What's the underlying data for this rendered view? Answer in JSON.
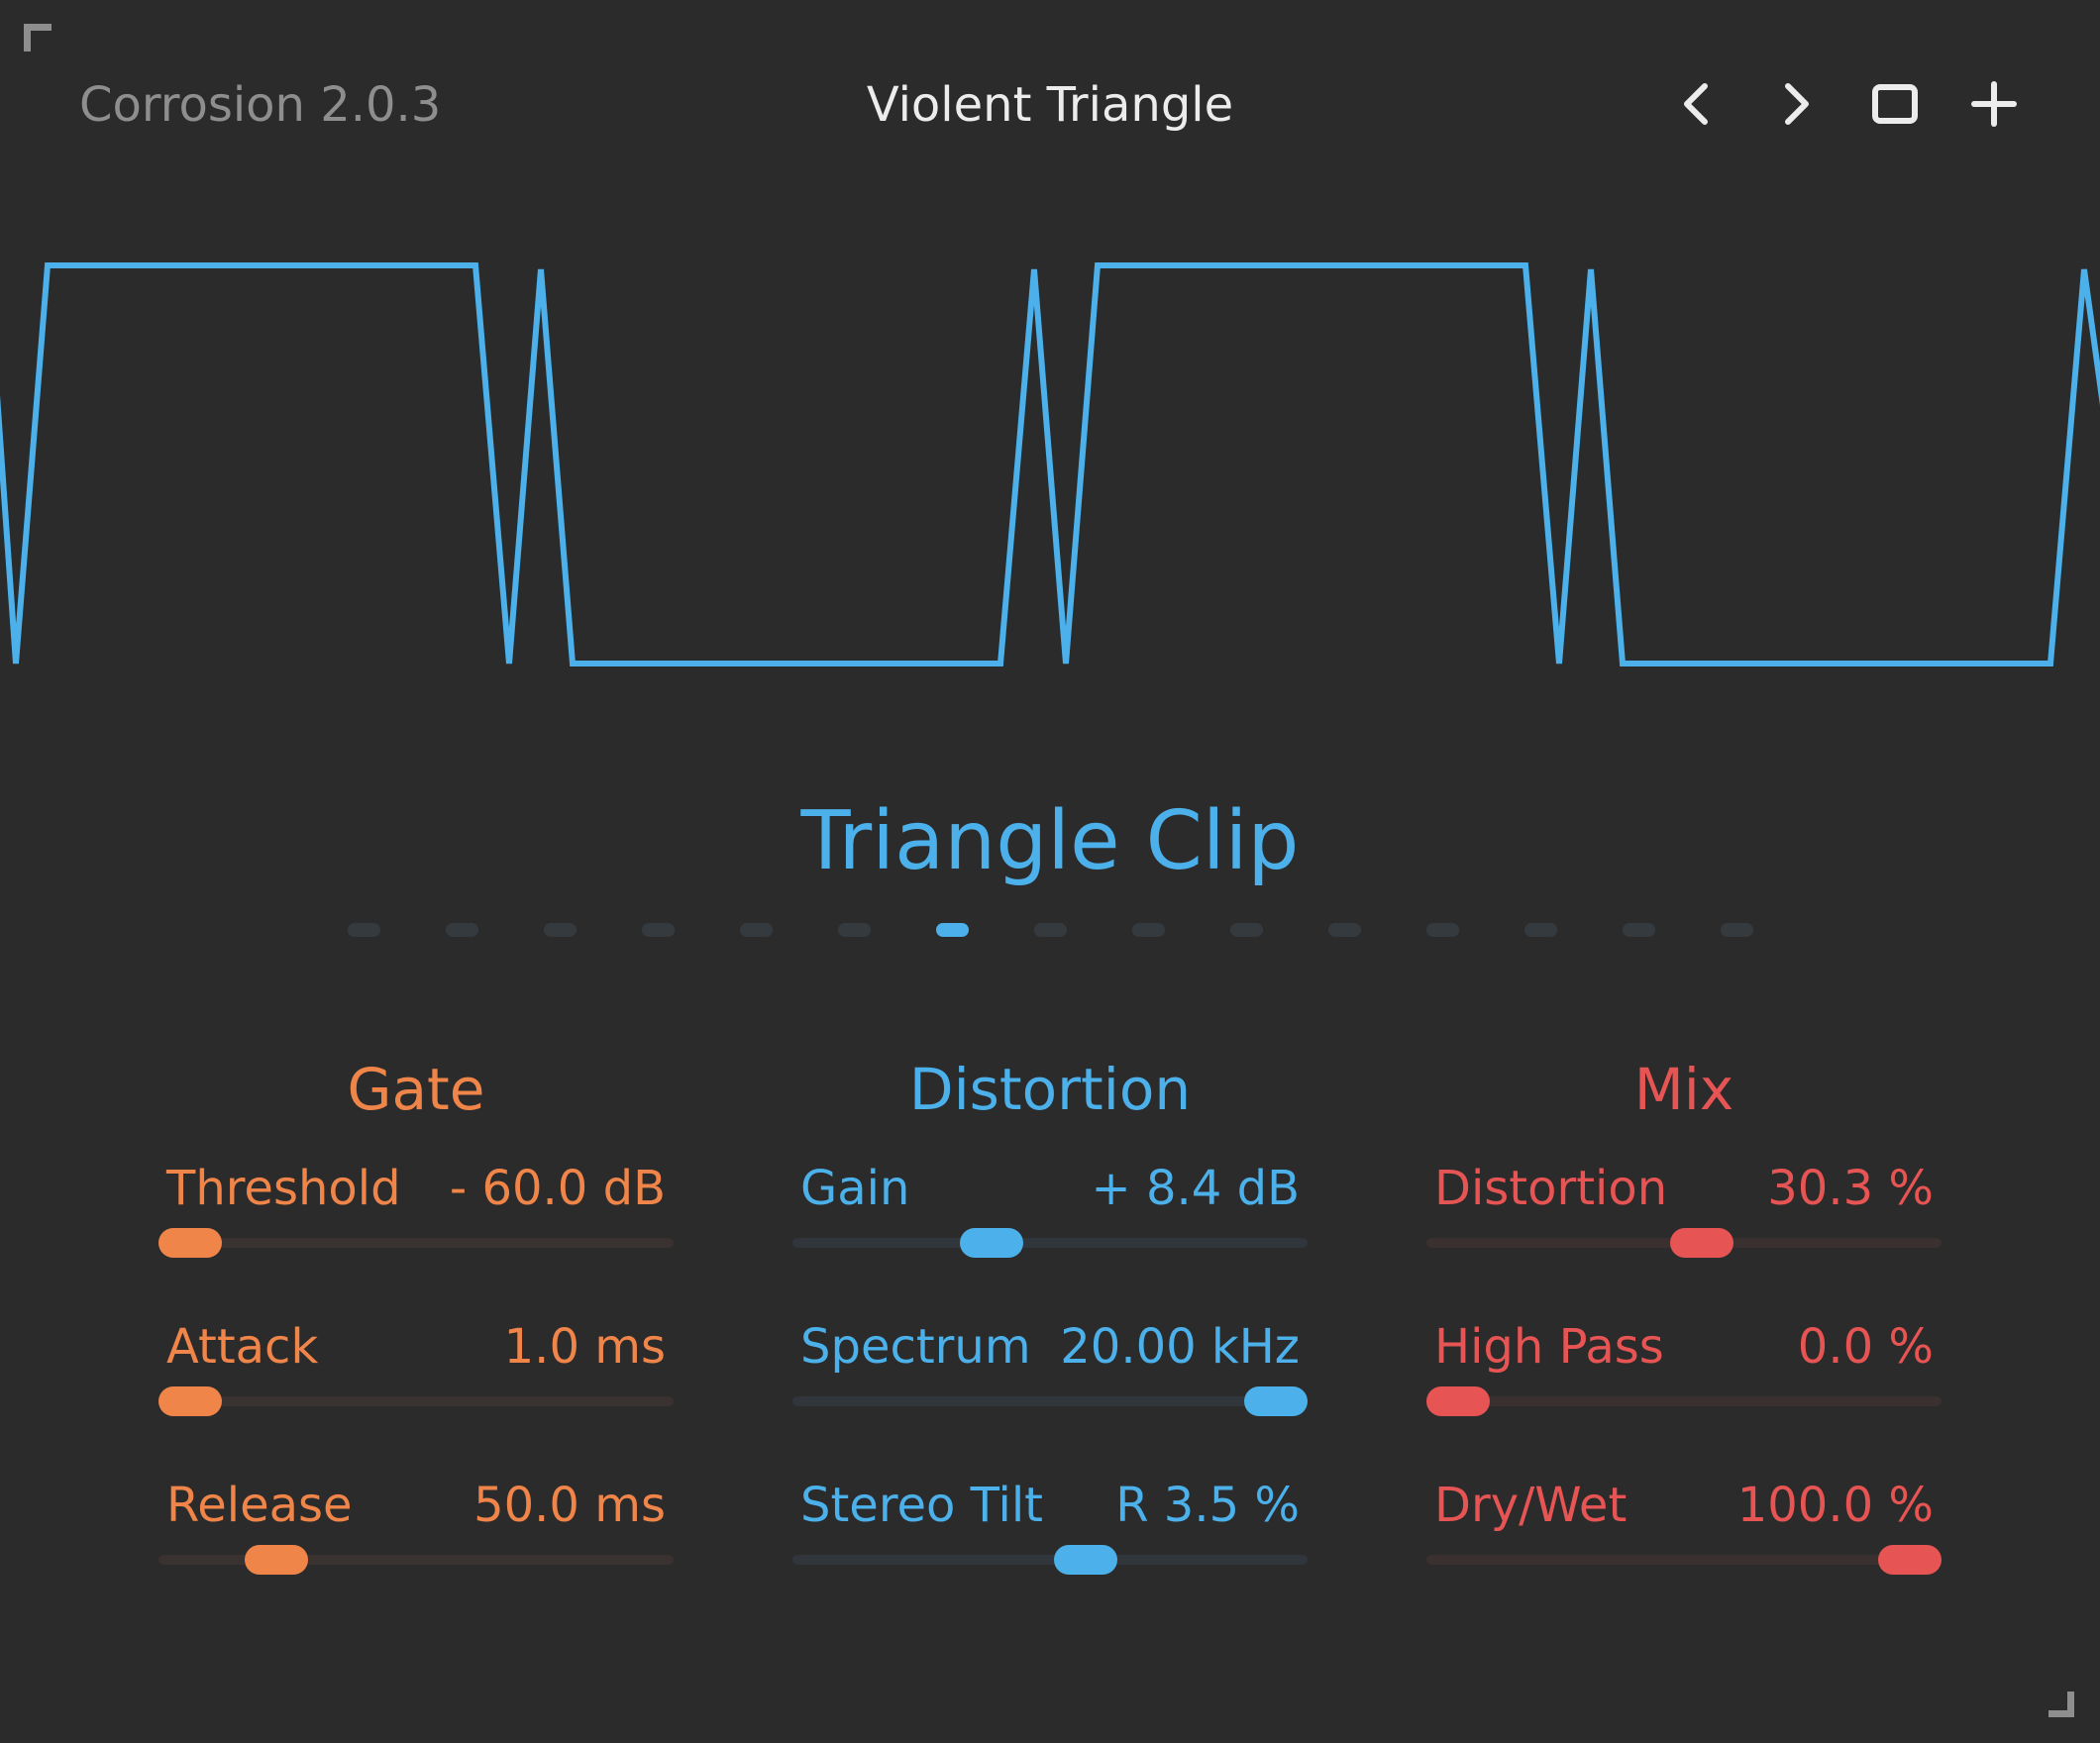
{
  "header": {
    "version": "Corrosion 2.0.3",
    "preset_name": "Violent Triangle",
    "icons": [
      "chevron-left-icon",
      "chevron-right-icon",
      "square-icon",
      "plus-icon"
    ]
  },
  "algorithm": {
    "title": "Triangle Clip",
    "count": 15,
    "selected_index": 6
  },
  "colors": {
    "background": "#2b2b2b",
    "gate": "#f0854a",
    "distortion": "#4cb0ea",
    "mix": "#e65454",
    "dot_inactive": "#353a3f",
    "muted_text": "#8e8e8e"
  },
  "sections": [
    {
      "key": "gate",
      "title": "Gate",
      "params": [
        {
          "label": "Threshold",
          "value": "- 60.0 dB",
          "position": 0.0
        },
        {
          "label": "Attack",
          "value": "1.0 ms",
          "position": 0.0
        },
        {
          "label": "Release",
          "value": "50.0 ms",
          "position": 0.19
        }
      ]
    },
    {
      "key": "distortion",
      "title": "Distortion",
      "params": [
        {
          "label": "Gain",
          "value": "+ 8.4 dB",
          "position": 0.37
        },
        {
          "label": "Spectrum",
          "value": "20.00 kHz",
          "position": 1.0
        },
        {
          "label": "Stereo Tilt",
          "value": "R 3.5 %",
          "position": 0.58
        }
      ]
    },
    {
      "key": "mix",
      "title": "Mix",
      "params": [
        {
          "label": "Distortion",
          "value": "30.3 %",
          "position": 0.54
        },
        {
          "label": "High Pass",
          "value": "0.0 %",
          "position": 0.0
        },
        {
          "label": "Dry/Wet",
          "value": "100.0 %",
          "position": 1.0
        }
      ]
    }
  ]
}
